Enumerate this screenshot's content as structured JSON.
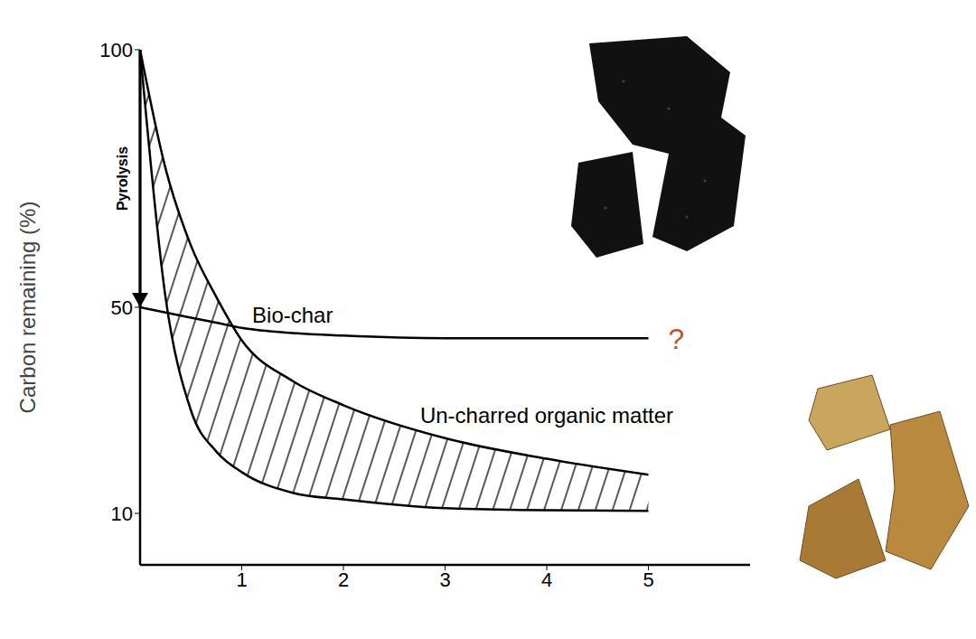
{
  "chart_data": {
    "type": "line",
    "x": [
      0,
      0.25,
      0.5,
      0.75,
      1,
      1.5,
      2,
      3,
      4,
      5
    ],
    "xlim": [
      0,
      6
    ],
    "xticks": [
      1,
      2,
      3,
      4,
      5
    ],
    "ylim": [
      0,
      100
    ],
    "yticks": [
      10,
      50,
      100
    ],
    "y_label": "Carbon remaining (%)",
    "grid": false,
    "annotations": {
      "pyrolysis": "Pyrolysis",
      "unknown": "?"
    },
    "series": [
      {
        "name": "Bio-char",
        "type": "line",
        "color": "#000000",
        "values": [
          50,
          49,
          48,
          47,
          46,
          45,
          44.5,
          44,
          44,
          44
        ]
      },
      {
        "name": "Un-charred organic matter",
        "type": "range",
        "color": "#000000",
        "values": [
          [
            100,
            100
          ],
          [
            52,
            77
          ],
          [
            30,
            62
          ],
          [
            22,
            52
          ],
          [
            18,
            43.6
          ],
          [
            14,
            35.7
          ],
          [
            12.7,
            31
          ],
          [
            11,
            24.6
          ],
          [
            10.6,
            20.6
          ],
          [
            10.5,
            17.5
          ]
        ]
      }
    ]
  }
}
